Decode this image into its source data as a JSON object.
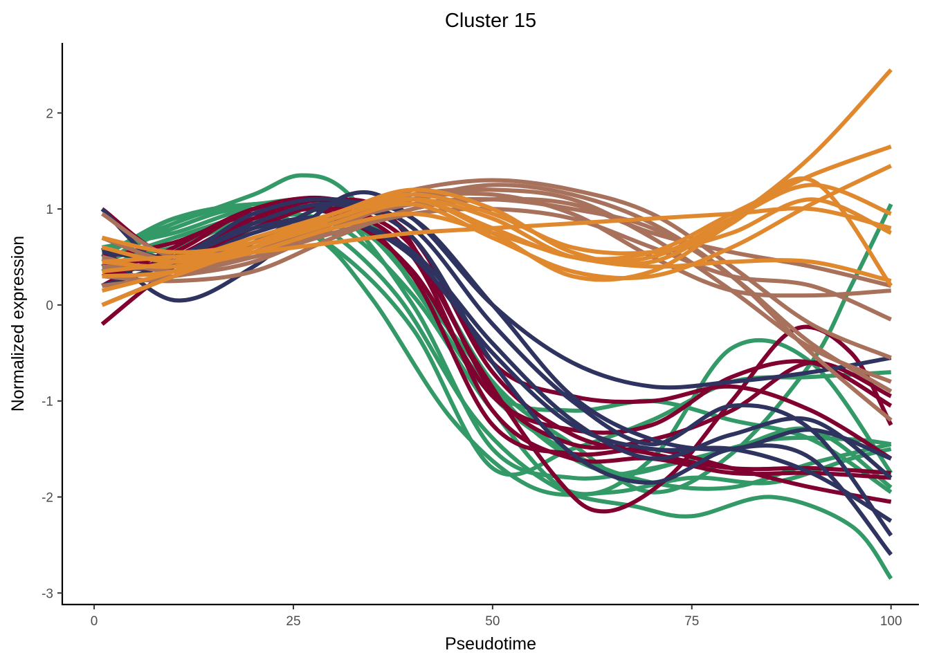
{
  "chart_data": {
    "type": "line",
    "title": "Cluster 15",
    "xlabel": "Pseudotime",
    "ylabel": "Normalized expression",
    "xlim": [
      -4,
      103.5
    ],
    "ylim": [
      -3.12,
      2.73
    ],
    "xticks": [
      0,
      25,
      50,
      75,
      100
    ],
    "yticks": [
      -3,
      -2,
      -1,
      0,
      1,
      2
    ],
    "grid": false,
    "legend": "none",
    "groups": [
      {
        "color": "#339966",
        "series": [
          {
            "x": [
              1,
              10,
              20,
              26,
              32,
              40,
              50,
              60,
              70,
              80,
              90,
              100
            ],
            "y": [
              0.55,
              0.85,
              1.15,
              1.35,
              1.15,
              0.2,
              -0.95,
              -1.55,
              -1.85,
              -1.9,
              -1.65,
              -1.45
            ]
          },
          {
            "x": [
              1,
              10,
              20,
              30,
              40,
              50,
              60,
              70,
              80,
              90,
              100
            ],
            "y": [
              0.5,
              0.6,
              0.9,
              0.85,
              0.1,
              -1.1,
              -1.95,
              -1.6,
              -0.45,
              -0.6,
              -1.75
            ]
          },
          {
            "x": [
              1,
              10,
              20,
              28,
              35,
              45,
              55,
              65,
              75,
              85,
              95,
              100
            ],
            "y": [
              0.45,
              0.7,
              0.95,
              1.0,
              0.7,
              -0.3,
              -1.3,
              -1.75,
              -1.6,
              -1.4,
              -1.4,
              -1.45
            ]
          },
          {
            "x": [
              1,
              10,
              20,
              28,
              38,
              48,
              58,
              68,
              75,
              85,
              95,
              100
            ],
            "y": [
              0.6,
              0.75,
              1.0,
              0.85,
              0.1,
              -1.2,
              -1.9,
              -2.1,
              -2.2,
              -2.0,
              -2.3,
              -2.85
            ]
          },
          {
            "x": [
              1,
              10,
              20,
              30,
              40,
              50,
              60,
              70,
              80,
              90,
              100
            ],
            "y": [
              0.4,
              0.85,
              1.05,
              0.95,
              0.3,
              -0.9,
              -1.1,
              -1.0,
              -1.2,
              -1.4,
              -1.95
            ]
          },
          {
            "x": [
              1,
              10,
              20,
              30,
              40,
              50,
              60,
              70,
              80,
              90,
              100
            ],
            "y": [
              0.5,
              0.9,
              1.05,
              1.0,
              0.0,
              -1.5,
              -1.8,
              -1.7,
              -1.5,
              -1.3,
              -1.9
            ]
          },
          {
            "x": [
              1,
              10,
              20,
              28,
              35,
              45,
              55,
              65,
              75,
              85,
              95,
              100
            ],
            "y": [
              0.35,
              0.7,
              0.85,
              0.7,
              0.05,
              -1.2,
              -1.9,
              -1.95,
              -1.8,
              -1.85,
              -1.6,
              -1.5
            ]
          },
          {
            "x": [
              1,
              10,
              20,
              30,
              40,
              50,
              60,
              70,
              80,
              90,
              100
            ],
            "y": [
              0.45,
              0.8,
              1.0,
              0.6,
              -0.25,
              -1.7,
              -1.5,
              -1.2,
              -0.8,
              -0.75,
              -0.7
            ]
          },
          {
            "x": [
              1,
              10,
              20,
              30,
              40,
              50,
              60,
              70,
              80,
              90,
              95,
              100
            ],
            "y": [
              0.5,
              0.9,
              1.0,
              0.95,
              0.5,
              -0.8,
              -1.45,
              -1.95,
              -1.55,
              -0.6,
              0.2,
              1.05
            ]
          }
        ]
      },
      {
        "color": "#800030",
        "series": [
          {
            "x": [
              1,
              10,
              20,
              30,
              40,
              50,
              60,
              70,
              80,
              90,
              100
            ],
            "y": [
              1.0,
              0.5,
              0.8,
              1.05,
              0.7,
              -0.6,
              -0.95,
              -1.0,
              -0.85,
              -1.1,
              -1.6
            ]
          },
          {
            "x": [
              1,
              10,
              20,
              30,
              38,
              48,
              58,
              64,
              72,
              80,
              88,
              95,
              100
            ],
            "y": [
              -0.2,
              0.4,
              0.9,
              1.1,
              0.85,
              -0.6,
              -1.8,
              -2.15,
              -1.8,
              -1.0,
              -0.25,
              -0.5,
              -1.25
            ]
          },
          {
            "x": [
              1,
              10,
              20,
              30,
              40,
              50,
              60,
              70,
              80,
              90,
              100
            ],
            "y": [
              0.2,
              0.6,
              1.0,
              1.1,
              0.7,
              -0.7,
              -1.35,
              -1.55,
              -1.7,
              -1.7,
              -1.75
            ]
          },
          {
            "x": [
              1,
              10,
              20,
              30,
              40,
              50,
              60,
              70,
              80,
              90,
              100
            ],
            "y": [
              0.35,
              0.45,
              0.85,
              1.0,
              0.6,
              -0.9,
              -1.45,
              -1.4,
              -1.1,
              -0.6,
              -0.95
            ]
          },
          {
            "x": [
              1,
              10,
              20,
              30,
              40,
              50,
              60,
              70,
              80,
              90,
              100
            ],
            "y": [
              0.4,
              0.55,
              1.0,
              1.05,
              0.3,
              -1.25,
              -1.55,
              -1.5,
              -1.7,
              -1.9,
              -2.05
            ]
          },
          {
            "x": [
              1,
              10,
              20,
              30,
              40,
              50,
              60,
              70,
              80,
              90,
              100
            ],
            "y": [
              0.5,
              0.65,
              0.95,
              0.95,
              0.35,
              -0.95,
              -1.3,
              -1.25,
              -0.75,
              -0.6,
              -1.05
            ]
          },
          {
            "x": [
              1,
              10,
              20,
              30,
              40,
              50,
              60,
              70,
              80,
              90,
              100
            ],
            "y": [
              0.3,
              0.5,
              0.9,
              1.0,
              0.5,
              -1.1,
              -1.6,
              -1.6,
              -1.75,
              -1.75,
              -1.8
            ]
          }
        ]
      },
      {
        "color": "#2f3360",
        "series": [
          {
            "x": [
              1,
              10,
              20,
              32,
              40,
              50,
              60,
              70,
              80,
              90,
              100
            ],
            "y": [
              0.6,
              0.05,
              0.4,
              1.15,
              0.9,
              0.0,
              -0.6,
              -0.85,
              -0.8,
              -0.7,
              -0.55
            ]
          },
          {
            "x": [
              1,
              10,
              20,
              30,
              40,
              50,
              60,
              70,
              80,
              90,
              100
            ],
            "y": [
              1.0,
              0.35,
              0.65,
              1.05,
              0.9,
              0.0,
              -0.95,
              -1.4,
              -1.5,
              -1.3,
              -1.6
            ]
          },
          {
            "x": [
              1,
              10,
              20,
              30,
              40,
              50,
              60,
              70,
              80,
              90,
              100
            ],
            "y": [
              0.4,
              0.4,
              0.75,
              0.9,
              0.5,
              -0.5,
              -1.25,
              -1.5,
              -1.5,
              -1.75,
              -2.25
            ]
          },
          {
            "x": [
              1,
              10,
              20,
              30,
              40,
              50,
              60,
              70,
              80,
              90,
              100
            ],
            "y": [
              0.2,
              0.45,
              0.85,
              1.05,
              0.7,
              -0.6,
              -1.55,
              -1.85,
              -1.5,
              -1.6,
              -2.6
            ]
          },
          {
            "x": [
              1,
              10,
              20,
              30,
              40,
              50,
              60,
              70,
              80,
              90,
              100
            ],
            "y": [
              0.7,
              0.5,
              0.95,
              1.1,
              0.8,
              -0.2,
              -1.0,
              -1.45,
              -1.05,
              -1.3,
              -2.4
            ]
          },
          {
            "x": [
              1,
              10,
              20,
              30,
              40,
              50,
              60,
              70,
              80,
              90,
              100
            ],
            "y": [
              0.55,
              0.5,
              0.8,
              0.9,
              0.55,
              -0.4,
              -1.2,
              -1.6,
              -1.35,
              -1.2,
              -1.8
            ]
          }
        ]
      },
      {
        "color": "#a8715c",
        "series": [
          {
            "x": [
              1,
              10,
              20,
              30,
              40,
              50,
              60,
              70,
              80,
              90,
              100
            ],
            "y": [
              0.95,
              0.5,
              0.65,
              0.95,
              1.2,
              1.3,
              1.2,
              0.95,
              0.4,
              -0.2,
              -0.55
            ]
          },
          {
            "x": [
              1,
              10,
              20,
              30,
              40,
              50,
              60,
              70,
              80,
              90,
              100
            ],
            "y": [
              0.7,
              0.45,
              0.5,
              0.85,
              1.1,
              1.25,
              1.15,
              0.85,
              0.3,
              -0.5,
              -1.2
            ]
          },
          {
            "x": [
              1,
              10,
              20,
              30,
              40,
              50,
              60,
              70,
              80,
              90,
              100
            ],
            "y": [
              0.3,
              0.25,
              0.35,
              0.7,
              1.0,
              1.1,
              1.05,
              0.75,
              0.55,
              0.4,
              0.2
            ]
          },
          {
            "x": [
              1,
              10,
              20,
              30,
              40,
              50,
              60,
              70,
              80,
              90,
              100
            ],
            "y": [
              0.5,
              0.35,
              0.5,
              0.75,
              0.95,
              1.0,
              0.9,
              0.6,
              0.3,
              0.2,
              -0.15
            ]
          },
          {
            "x": [
              1,
              10,
              20,
              30,
              40,
              50,
              60,
              70,
              80,
              90,
              100
            ],
            "y": [
              0.4,
              0.4,
              0.6,
              0.9,
              1.15,
              1.2,
              1.1,
              0.7,
              0.15,
              -0.45,
              -0.8
            ]
          },
          {
            "x": [
              1,
              10,
              20,
              30,
              40,
              50,
              60,
              70,
              80,
              90,
              100
            ],
            "y": [
              0.2,
              0.3,
              0.45,
              0.8,
              1.1,
              1.15,
              0.95,
              0.5,
              0.15,
              0.1,
              0.15
            ]
          },
          {
            "x": [
              1,
              10,
              20,
              30,
              40,
              50,
              60,
              70,
              80,
              90,
              100
            ],
            "y": [
              0.0,
              0.3,
              0.55,
              0.85,
              1.05,
              1.1,
              1.0,
              0.8,
              0.3,
              -0.4,
              -0.9
            ]
          }
        ]
      },
      {
        "color": "#e0882e",
        "series": [
          {
            "x": [
              1,
              10,
              20,
              30,
              40,
              50,
              60,
              70,
              80,
              90,
              100
            ],
            "y": [
              0.45,
              0.5,
              0.55,
              0.65,
              0.75,
              0.8,
              0.85,
              0.9,
              0.95,
              1.0,
              0.8
            ]
          },
          {
            "x": [
              1,
              10,
              20,
              30,
              40,
              50,
              60,
              70,
              80,
              90,
              100
            ],
            "y": [
              0.35,
              0.45,
              0.7,
              0.95,
              1.2,
              1.0,
              0.55,
              0.45,
              0.9,
              1.55,
              2.45
            ]
          },
          {
            "x": [
              1,
              10,
              20,
              30,
              40,
              50,
              60,
              70,
              80,
              90,
              100
            ],
            "y": [
              0.6,
              0.45,
              0.6,
              0.9,
              1.1,
              0.8,
              0.5,
              0.55,
              0.95,
              1.35,
              1.65
            ]
          },
          {
            "x": [
              1,
              10,
              20,
              30,
              40,
              50,
              60,
              70,
              80,
              90,
              100
            ],
            "y": [
              0.3,
              0.35,
              0.6,
              0.85,
              1.05,
              0.7,
              0.35,
              0.3,
              0.6,
              1.05,
              1.45
            ]
          },
          {
            "x": [
              1,
              10,
              20,
              30,
              40,
              50,
              60,
              70,
              80,
              90,
              100
            ],
            "y": [
              0.0,
              0.3,
              0.6,
              0.9,
              1.1,
              0.9,
              0.5,
              0.5,
              0.9,
              1.25,
              0.95
            ]
          },
          {
            "x": [
              1,
              10,
              20,
              30,
              40,
              50,
              60,
              70,
              80,
              90,
              100
            ],
            "y": [
              0.15,
              0.35,
              0.65,
              0.9,
              1.1,
              0.75,
              0.3,
              0.35,
              0.85,
              1.3,
              0.2
            ]
          },
          {
            "x": [
              1,
              10,
              20,
              30,
              40,
              50,
              60,
              70,
              80,
              90,
              100
            ],
            "y": [
              0.7,
              0.55,
              0.65,
              0.95,
              1.15,
              0.95,
              0.6,
              0.55,
              0.75,
              1.1,
              0.75
            ]
          },
          {
            "x": [
              1,
              10,
              20,
              30,
              40,
              50,
              60,
              70,
              80,
              90,
              100
            ],
            "y": [
              0.45,
              0.4,
              0.55,
              0.8,
              0.95,
              0.75,
              0.5,
              0.4,
              0.45,
              0.45,
              0.25
            ]
          }
        ]
      }
    ]
  }
}
